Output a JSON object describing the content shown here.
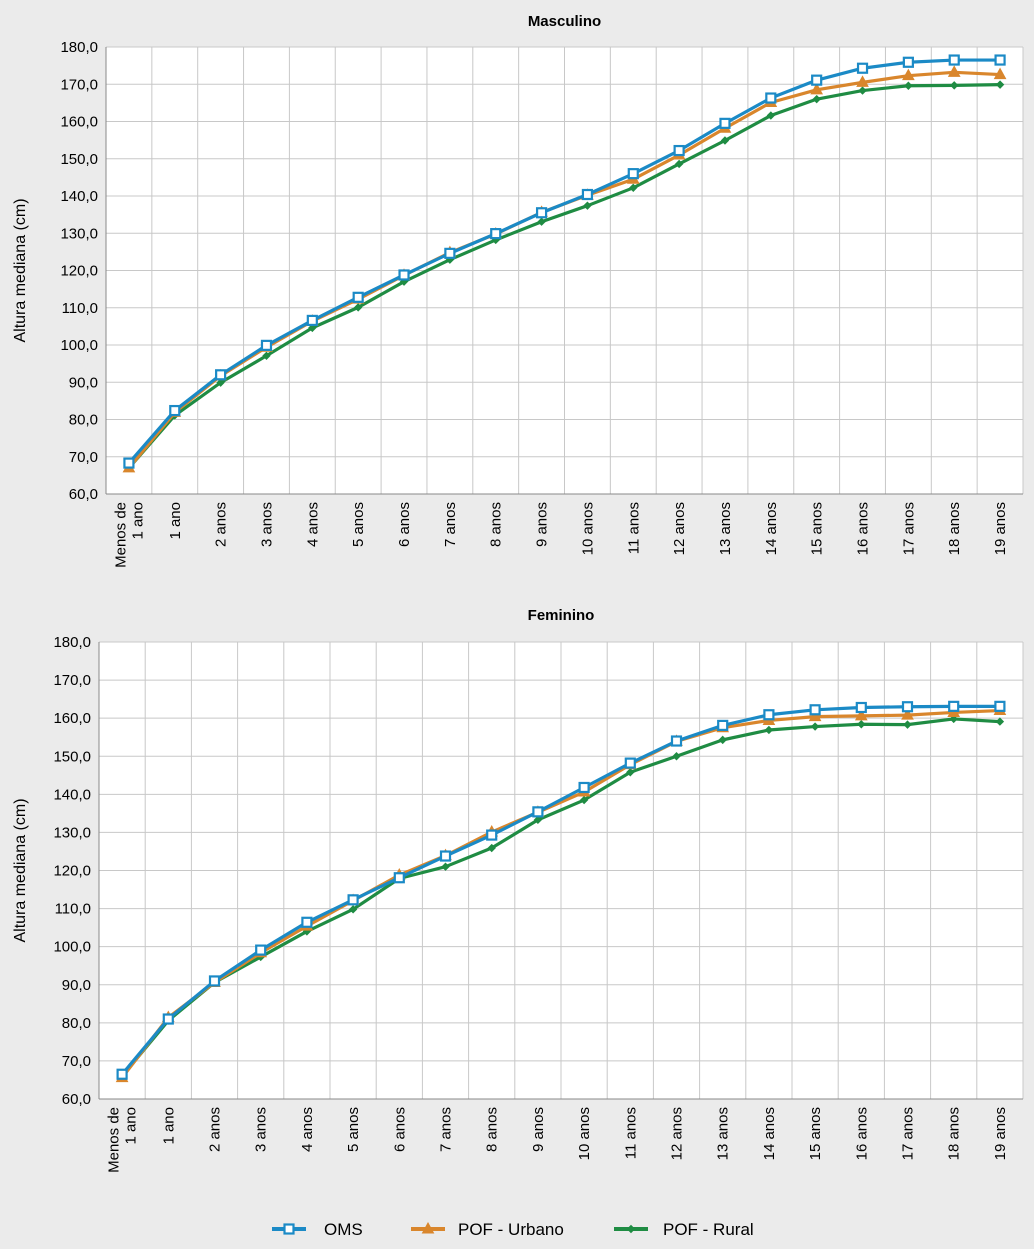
{
  "colors": {
    "OMS": "#1b8ac6",
    "POF - Urbano": "#d9862c",
    "POF - Rural": "#1f8c43",
    "plot_background": "#ffffff",
    "page_background": "#ebebeb",
    "grid": "#c8c8c8"
  },
  "legend": {
    "items": [
      {
        "name": "OMS",
        "marker": "square"
      },
      {
        "name": "POF - Urbano",
        "marker": "triangle"
      },
      {
        "name": "POF - Rural",
        "marker": "diamond"
      }
    ],
    "placement": "bottom-center"
  },
  "chart_data": [
    {
      "type": "line",
      "title": "Masculino",
      "ylabel": "Altura mediana (cm)",
      "xlabel": "",
      "ylim": [
        60,
        180
      ],
      "ytick_step": 10,
      "yticks": [
        "60,0",
        "70,0",
        "80,0",
        "90,0",
        "100,0",
        "110,0",
        "120,0",
        "130,0",
        "140,0",
        "150,0",
        "160,0",
        "170,0",
        "180,0"
      ],
      "grid": true,
      "categories": [
        [
          "Menos de",
          "1 ano"
        ],
        [
          "1 ano"
        ],
        [
          "2 anos"
        ],
        [
          "3 anos"
        ],
        [
          "4 anos"
        ],
        [
          "5 anos"
        ],
        [
          "6 anos"
        ],
        [
          "7 anos"
        ],
        [
          "8 anos"
        ],
        [
          "9 anos"
        ],
        [
          "10 anos"
        ],
        [
          "11 anos"
        ],
        [
          "12 anos"
        ],
        [
          "13 anos"
        ],
        [
          "14 anos"
        ],
        [
          "15 anos"
        ],
        [
          "16 anos"
        ],
        [
          "17 anos"
        ],
        [
          "18 anos"
        ],
        [
          "19 anos"
        ]
      ],
      "series": [
        {
          "name": "OMS",
          "values": [
            68.3,
            82.4,
            92.0,
            99.9,
            106.6,
            112.8,
            118.8,
            124.6,
            129.9,
            135.5,
            140.4,
            146.0,
            152.2,
            159.5,
            166.3,
            171.1,
            174.3,
            175.9,
            176.5,
            176.5
          ]
        },
        {
          "name": "POF - Urbano",
          "values": [
            67.0,
            81.9,
            91.7,
            99.4,
            106.4,
            112.3,
            118.7,
            124.8,
            129.8,
            135.6,
            140.2,
            144.5,
            151.0,
            158.2,
            165.1,
            168.5,
            170.5,
            172.3,
            173.2,
            172.6
          ]
        },
        {
          "name": "POF - Rural",
          "values": [
            67.0,
            81.1,
            89.9,
            97.1,
            104.6,
            110.1,
            117.0,
            122.9,
            128.2,
            133.1,
            137.4,
            142.2,
            148.6,
            154.9,
            161.6,
            166.0,
            168.3,
            169.6,
            169.7,
            169.9
          ]
        }
      ]
    },
    {
      "type": "line",
      "title": "Feminino",
      "ylabel": "Altura mediana (cm)",
      "xlabel": "",
      "ylim": [
        60,
        180
      ],
      "ytick_step": 10,
      "yticks": [
        "60,0",
        "70,0",
        "80,0",
        "90,0",
        "100,0",
        "110,0",
        "120,0",
        "130,0",
        "140,0",
        "150,0",
        "160,0",
        "170,0",
        "180,0"
      ],
      "grid": true,
      "categories": [
        [
          "Menos de",
          "1 ano"
        ],
        [
          "1 ano"
        ],
        [
          "2 anos"
        ],
        [
          "3 anos"
        ],
        [
          "4 anos"
        ],
        [
          "5 anos"
        ],
        [
          "6 anos"
        ],
        [
          "7 anos"
        ],
        [
          "8 anos"
        ],
        [
          "9 anos"
        ],
        [
          "10 anos"
        ],
        [
          "11 anos"
        ],
        [
          "12 anos"
        ],
        [
          "13 anos"
        ],
        [
          "14 anos"
        ],
        [
          "15 anos"
        ],
        [
          "16 anos"
        ],
        [
          "17 anos"
        ],
        [
          "18 anos"
        ],
        [
          "19 anos"
        ]
      ],
      "series": [
        {
          "name": "OMS",
          "values": [
            66.5,
            81.0,
            91.0,
            99.1,
            106.4,
            112.3,
            118.1,
            123.8,
            129.3,
            135.4,
            141.8,
            148.2,
            154.0,
            158.1,
            160.9,
            162.2,
            162.8,
            163.0,
            163.1,
            163.1
          ]
        },
        {
          "name": "POF - Urbano",
          "values": [
            65.6,
            81.4,
            90.6,
            98.4,
            105.4,
            112.1,
            118.8,
            123.9,
            130.1,
            135.3,
            140.6,
            147.8,
            153.9,
            157.5,
            159.4,
            160.4,
            160.6,
            160.8,
            161.5,
            162.0
          ]
        },
        {
          "name": "POF - Rural",
          "values": [
            66.0,
            80.6,
            90.6,
            97.3,
            104.0,
            109.8,
            117.9,
            121.0,
            125.9,
            133.3,
            138.5,
            145.8,
            150.0,
            154.3,
            156.9,
            157.8,
            158.4,
            158.3,
            159.8,
            159.1
          ]
        }
      ]
    }
  ]
}
